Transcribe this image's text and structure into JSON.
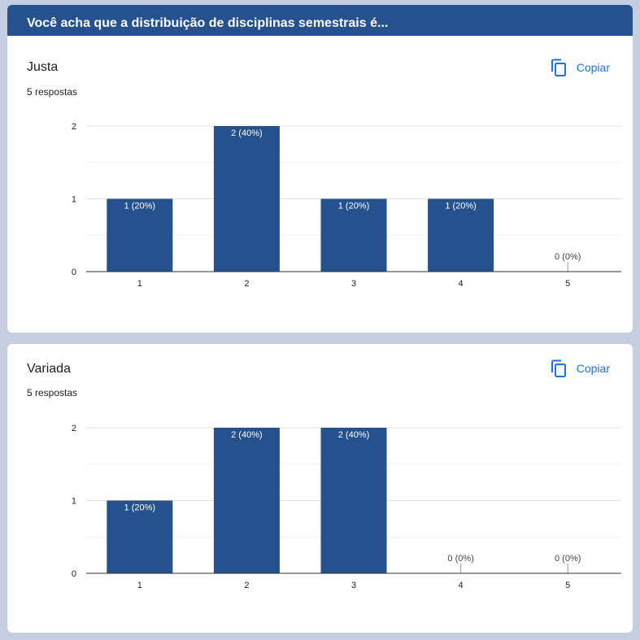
{
  "page": {
    "title": "Você acha que a distribuição de disciplinas semestrais é..."
  },
  "colors": {
    "header": "#25518f",
    "bar": "#25518f",
    "accent": "#1a73e8"
  },
  "questions": [
    {
      "title": "Justa",
      "responses": "5 respostas",
      "copy_label": "Copiar",
      "copy_icon": "copy-icon"
    },
    {
      "title": "Variada",
      "responses": "5 respostas",
      "copy_label": "Copiar",
      "copy_icon": "copy-icon"
    }
  ],
  "chart_data": [
    {
      "type": "bar",
      "title": "Justa",
      "categories": [
        "1",
        "2",
        "3",
        "4",
        "5"
      ],
      "values": [
        1,
        2,
        1,
        1,
        0
      ],
      "data_labels": [
        "1 (20%)",
        "2 (40%)",
        "1 (20%)",
        "1 (20%)",
        "0 (0%)"
      ],
      "yticks": [
        "0",
        "1",
        "2"
      ],
      "ylim": [
        0,
        2
      ],
      "grid": true,
      "legend": "none"
    },
    {
      "type": "bar",
      "title": "Variada",
      "categories": [
        "1",
        "2",
        "3",
        "4",
        "5"
      ],
      "values": [
        1,
        2,
        2,
        0,
        0
      ],
      "data_labels": [
        "1 (20%)",
        "2 (40%)",
        "2 (40%)",
        "0 (0%)",
        "0 (0%)"
      ],
      "yticks": [
        "0",
        "1",
        "2"
      ],
      "ylim": [
        0,
        2
      ],
      "grid": true,
      "legend": "none"
    }
  ]
}
